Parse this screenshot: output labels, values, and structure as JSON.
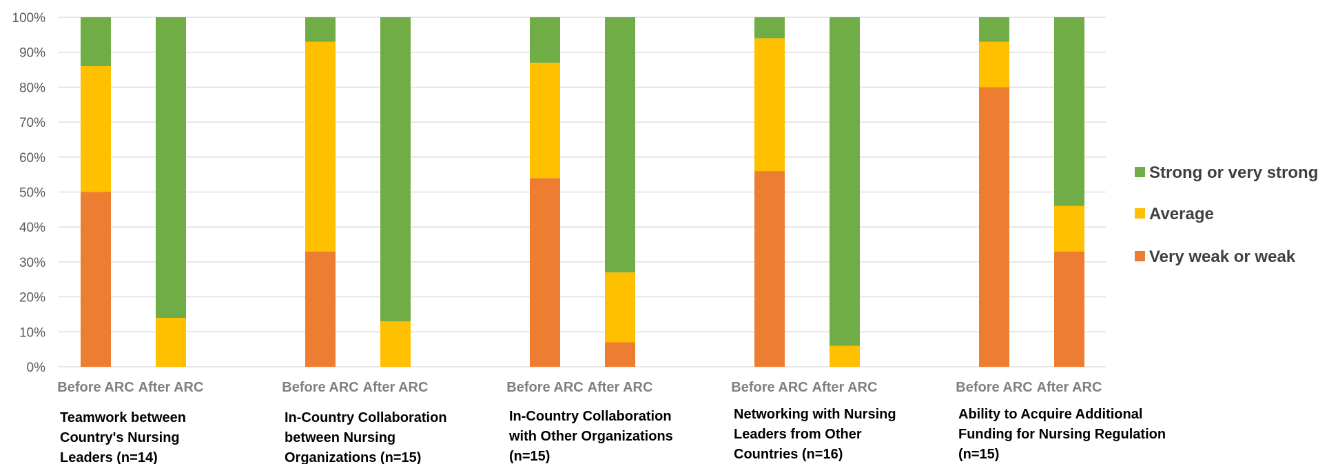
{
  "chart_data": {
    "type": "bar",
    "stacked": true,
    "percent": true,
    "ylim": [
      0,
      100
    ],
    "yticks": [
      "0%",
      "10%",
      "20%",
      "30%",
      "40%",
      "50%",
      "60%",
      "70%",
      "80%",
      "90%",
      "100%"
    ],
    "bar_labels": [
      "Before ARC",
      "After ARC"
    ],
    "groups": [
      {
        "title_lines": [
          "Teamwork between",
          "Country's Nursing",
          "Leaders (n=14)"
        ],
        "bars": [
          {
            "label": "Before ARC",
            "values": [
              50,
              36,
              14
            ]
          },
          {
            "label": "After ARC",
            "values": [
              0,
              14,
              86
            ]
          }
        ]
      },
      {
        "title_lines": [
          "In-Country Collaboration",
          "between Nursing",
          "Organizations (n=15)"
        ],
        "bars": [
          {
            "label": "Before ARC",
            "values": [
              33,
              60,
              7
            ]
          },
          {
            "label": "After ARC",
            "values": [
              0,
              13,
              87
            ]
          }
        ]
      },
      {
        "title_lines": [
          "In-Country Collaboration",
          "with Other Organizations",
          "(n=15)"
        ],
        "bars": [
          {
            "label": "Before ARC",
            "values": [
              54,
              33,
              13
            ]
          },
          {
            "label": "After ARC",
            "values": [
              7,
              20,
              73
            ]
          }
        ]
      },
      {
        "title_lines": [
          "Networking with Nursing",
          "Leaders from Other",
          "Countries (n=16)"
        ],
        "bars": [
          {
            "label": "Before ARC",
            "values": [
              56,
              38,
              6
            ]
          },
          {
            "label": "After ARC",
            "values": [
              0,
              6,
              94
            ]
          }
        ]
      },
      {
        "title_lines": [
          "Ability to Acquire Additional",
          "Funding for Nursing Regulation",
          "(n=15)"
        ],
        "bars": [
          {
            "label": "Before ARC",
            "values": [
              80,
              13,
              7
            ]
          },
          {
            "label": "After ARC",
            "values": [
              33,
              13,
              54
            ]
          }
        ]
      }
    ],
    "series": [
      {
        "name": "Very weak or weak",
        "color": "#ed7d31"
      },
      {
        "name": "Average",
        "color": "#ffc000"
      },
      {
        "name": "Strong or very strong",
        "color": "#70ad47"
      }
    ],
    "legend_order": [
      "Strong or very strong",
      "Average",
      "Very weak or weak"
    ],
    "legend_position": "right",
    "grid": true
  }
}
